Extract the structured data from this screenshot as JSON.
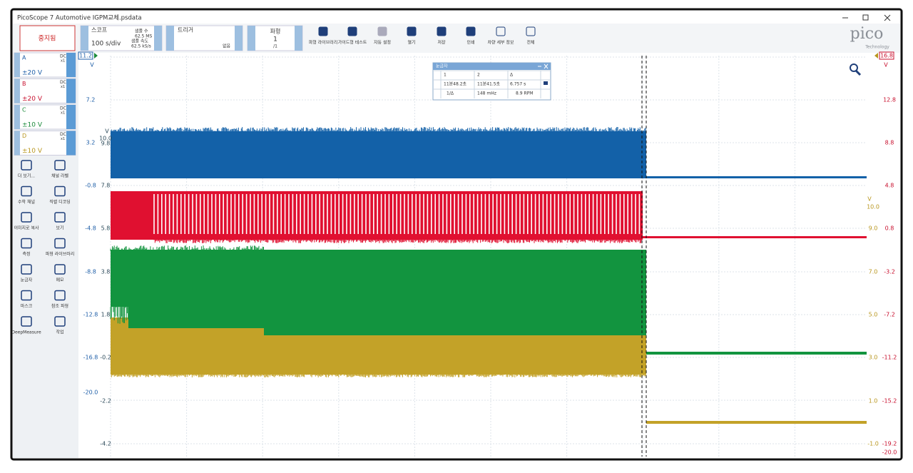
{
  "window": {
    "title": "PicoScope 7 Automotive IGPM교체.psdata"
  },
  "toolbar": {
    "stop_button": "중지됨",
    "scope": {
      "label": "스코프",
      "timebase": "100 s/div",
      "samples_label": "샘플 수",
      "samples": "62.5 MS",
      "rate_label": "샘플 속도",
      "rate": "62.5 kS/s"
    },
    "trigger": {
      "label": "트리거",
      "mode": "없음"
    },
    "waveform": {
      "label": "파형",
      "current": "1",
      "total": "/1"
    },
    "buttons": [
      "파형 라이브러리",
      "가이드형 테스트",
      "자동 설정",
      "열기",
      "저장",
      "인쇄",
      "차량 세부 정보",
      "전체"
    ],
    "logo": {
      "name": "pico",
      "sub": "Technology"
    }
  },
  "channels": [
    {
      "name": "A",
      "coupling": "DC",
      "probe": "x1",
      "range": "±20 V"
    },
    {
      "name": "B",
      "coupling": "DC",
      "probe": "x1",
      "range": "±20 V"
    },
    {
      "name": "C",
      "coupling": "DC",
      "probe": "x1",
      "range": "±10 V"
    },
    {
      "name": "D",
      "coupling": "DC",
      "probe": "x1",
      "range": "±10 V"
    }
  ],
  "tools": [
    "더 보기...",
    "채널 라벨",
    "수학 채널",
    "직렬 디코딩",
    "이미지로 복사",
    "보기",
    "측정",
    "파형 라이브러리",
    "눈금자",
    "메모",
    "마스크",
    "참조 파형",
    "DeepMeasure",
    "작업"
  ],
  "plot": {
    "axis_a": {
      "marker": "11.2",
      "unit": "V",
      "labels": [
        "7.2",
        "3.2",
        "-0.8",
        "-4.8",
        "-8.8",
        "-12.8",
        "-16.8",
        "-20.0"
      ]
    },
    "axis_c": {
      "unit": "V",
      "labels": [
        "10.0",
        "9.8",
        "7.8",
        "5.8",
        "3.8",
        "1.8",
        "-0.2",
        "-2.2",
        "-4.2"
      ]
    },
    "axis_b": {
      "marker": "16.8",
      "unit": "V",
      "labels": [
        "12.8",
        "8.8",
        "4.8",
        "0.8",
        "-3.2",
        "-7.2",
        "-11.2",
        "-15.2",
        "-19.2",
        "-20.0"
      ]
    },
    "axis_d": {
      "unit": "V",
      "labels": [
        "10.0",
        "9.0",
        "7.0",
        "5.0",
        "3.0",
        "1.0",
        "-1.0"
      ]
    }
  },
  "ruler": {
    "title": "눈금자",
    "header": [
      "1",
      "2",
      "Δ"
    ],
    "rows": [
      [
        "11분48.2초",
        "11분41.5초",
        "6.757 s"
      ],
      [
        "1/Δ",
        "148 mHz",
        "8.9 RPM"
      ]
    ]
  }
}
